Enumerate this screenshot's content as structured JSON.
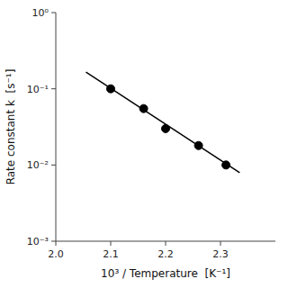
{
  "chart_data": {
    "type": "scatter",
    "xlabel": "10³ / Temperature  [K⁻¹]",
    "ylabel": "Rate constant k  [s⁻¹]",
    "log": "y",
    "grid": false,
    "xlim": [
      2.0,
      2.4
    ],
    "xticks": [
      {
        "value": 2.0,
        "label": "2.0"
      },
      2.1,
      2.2,
      2.3
    ],
    "ylim": [
      0.001,
      1
    ],
    "yticks": [
      {
        "value": 0.001,
        "label": "10⁻³"
      },
      {
        "value": 0.01,
        "label": "10⁻²"
      },
      {
        "value": 0.1,
        "label": "10⁻¹"
      },
      {
        "value": 1,
        "label": "10⁰"
      }
    ],
    "series": [
      {
        "type": "line",
        "color": "#000000",
        "line_style": "solid",
        "x": [
          2.055,
          2.335
        ],
        "values": [
          0.16595869074375605,
          0.007943282347242814
        ]
      },
      {
        "type": "scatter",
        "color": "#000000",
        "marker": "circle",
        "x": [
          2.1,
          2.16,
          2.2,
          2.26,
          2.31
        ],
        "values": [
          0.1,
          0.055,
          0.03,
          0.018,
          0.01
        ]
      }
    ]
  }
}
